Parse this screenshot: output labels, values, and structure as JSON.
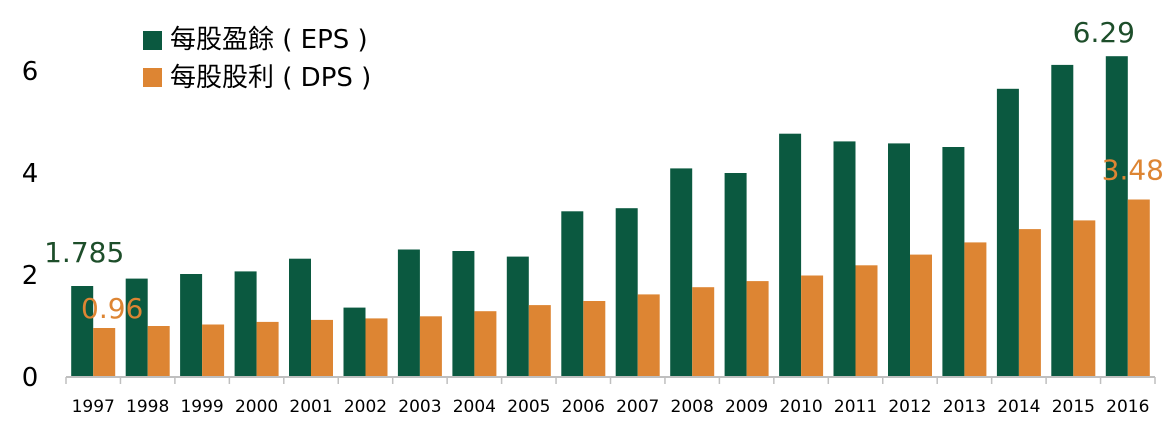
{
  "chart_data": {
    "type": "bar",
    "categories": [
      "1997",
      "1998",
      "1999",
      "2000",
      "2001",
      "2002",
      "2003",
      "2004",
      "2005",
      "2006",
      "2007",
      "2008",
      "2009",
      "2010",
      "2011",
      "2012",
      "2013",
      "2014",
      "2015",
      "2016"
    ],
    "series": [
      {
        "name": "每股盈餘 ( EPS )",
        "color": "#0b5940",
        "values": [
          1.785,
          1.93,
          2.02,
          2.07,
          2.32,
          1.36,
          2.5,
          2.47,
          2.36,
          3.25,
          3.31,
          4.09,
          4.0,
          4.77,
          4.62,
          4.58,
          4.51,
          5.65,
          6.12,
          6.29
        ]
      },
      {
        "name": "每股股利 ( DPS )",
        "color": "#dd8533",
        "values": [
          0.96,
          1.0,
          1.03,
          1.08,
          1.12,
          1.15,
          1.19,
          1.29,
          1.41,
          1.49,
          1.62,
          1.76,
          1.88,
          1.99,
          2.19,
          2.4,
          2.64,
          2.9,
          3.07,
          3.48
        ]
      }
    ],
    "yticks": [
      0,
      2,
      4,
      6
    ],
    "ylim": [
      0,
      7.0
    ],
    "legend": "top-left",
    "grid": false,
    "annotations": [
      {
        "text": "1.785",
        "series": 0,
        "index": 0,
        "color": "#1d4e2a"
      },
      {
        "text": "0.96",
        "series": 1,
        "index": 0,
        "color": "#dd8533"
      },
      {
        "text": "6.29",
        "series": 0,
        "index": 19,
        "color": "#1d4e2a"
      },
      {
        "text": "3.48",
        "series": 1,
        "index": 19,
        "color": "#dd8533"
      }
    ]
  }
}
